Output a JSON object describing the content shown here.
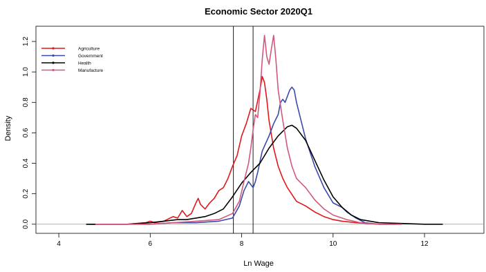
{
  "chart_data": {
    "type": "line",
    "title": "Economic Sector 2020Q1",
    "xlabel": "Ln Wage",
    "ylabel": "Density",
    "xlim": [
      3.5,
      13.3
    ],
    "ylim": [
      -0.06,
      1.3
    ],
    "xticks": [
      4,
      6,
      8,
      10,
      12
    ],
    "yticks": [
      0.0,
      0.2,
      0.4,
      0.6,
      0.8,
      1.0,
      1.2
    ],
    "xtick_labels": [
      "4",
      "6",
      "8",
      "10",
      "12"
    ],
    "ytick_labels": [
      "0.0",
      "0.2",
      "0.4",
      "0.6",
      "0.8",
      "1.0",
      "1.2"
    ],
    "grid": false,
    "legend_position": "top-left",
    "reference_lines": [
      7.82,
      8.25
    ],
    "series": [
      {
        "name": "Agriculture",
        "color": "#e3151a",
        "x": [
          4.7,
          5.5,
          5.9,
          6.0,
          6.1,
          6.3,
          6.5,
          6.6,
          6.7,
          6.8,
          6.9,
          7.0,
          7.05,
          7.1,
          7.2,
          7.3,
          7.4,
          7.5,
          7.6,
          7.7,
          7.8,
          7.9,
          8.0,
          8.1,
          8.2,
          8.3,
          8.4,
          8.45,
          8.5,
          8.55,
          8.6,
          8.7,
          8.8,
          8.9,
          9.0,
          9.2,
          9.4,
          9.6,
          9.8,
          10.0,
          10.2,
          10.5,
          11.0,
          11.4
        ],
        "y": [
          0.0,
          0.0,
          0.01,
          0.02,
          0.01,
          0.02,
          0.05,
          0.04,
          0.09,
          0.05,
          0.07,
          0.14,
          0.17,
          0.13,
          0.1,
          0.14,
          0.17,
          0.22,
          0.24,
          0.3,
          0.38,
          0.45,
          0.58,
          0.66,
          0.76,
          0.74,
          0.88,
          0.97,
          0.93,
          0.82,
          0.68,
          0.5,
          0.38,
          0.3,
          0.24,
          0.15,
          0.12,
          0.08,
          0.05,
          0.03,
          0.02,
          0.01,
          0.0,
          0.0
        ]
      },
      {
        "name": "Government",
        "color": "#3a49a8",
        "x": [
          4.6,
          6.0,
          6.5,
          7.0,
          7.5,
          7.8,
          7.95,
          8.05,
          8.15,
          8.25,
          8.3,
          8.35,
          8.45,
          8.6,
          8.7,
          8.8,
          8.85,
          8.9,
          8.95,
          9.0,
          9.05,
          9.1,
          9.15,
          9.2,
          9.3,
          9.4,
          9.6,
          9.8,
          10.0,
          10.2,
          10.3,
          10.5,
          10.7,
          11.0,
          11.5
        ],
        "y": [
          0.0,
          0.0,
          0.01,
          0.01,
          0.02,
          0.04,
          0.12,
          0.22,
          0.28,
          0.24,
          0.28,
          0.34,
          0.48,
          0.58,
          0.66,
          0.72,
          0.8,
          0.82,
          0.8,
          0.84,
          0.88,
          0.9,
          0.88,
          0.8,
          0.68,
          0.56,
          0.38,
          0.24,
          0.14,
          0.11,
          0.08,
          0.04,
          0.01,
          0.0,
          0.0
        ]
      },
      {
        "name": "Health",
        "color": "#000000",
        "x": [
          4.6,
          5.5,
          6.0,
          6.3,
          6.6,
          6.8,
          7.0,
          7.2,
          7.4,
          7.6,
          7.8,
          8.0,
          8.2,
          8.4,
          8.6,
          8.8,
          9.0,
          9.1,
          9.2,
          9.4,
          9.6,
          9.8,
          10.0,
          10.2,
          10.4,
          10.6,
          11.0,
          12.0,
          12.4
        ],
        "y": [
          0.0,
          0.0,
          0.01,
          0.02,
          0.03,
          0.03,
          0.04,
          0.05,
          0.07,
          0.1,
          0.18,
          0.27,
          0.34,
          0.4,
          0.5,
          0.58,
          0.64,
          0.65,
          0.63,
          0.55,
          0.42,
          0.29,
          0.18,
          0.11,
          0.06,
          0.03,
          0.01,
          0.0,
          0.0
        ]
      },
      {
        "name": "Manufacture",
        "color": "#d1587a",
        "x": [
          4.8,
          6.0,
          6.5,
          7.0,
          7.5,
          7.8,
          7.95,
          8.05,
          8.15,
          8.2,
          8.25,
          8.3,
          8.35,
          8.4,
          8.45,
          8.5,
          8.55,
          8.6,
          8.65,
          8.7,
          8.75,
          8.8,
          8.9,
          9.0,
          9.1,
          9.2,
          9.4,
          9.6,
          9.8,
          10.0,
          10.3,
          10.6,
          11.0,
          11.5
        ],
        "y": [
          0.0,
          0.0,
          0.01,
          0.02,
          0.03,
          0.07,
          0.15,
          0.28,
          0.4,
          0.5,
          0.62,
          0.72,
          0.7,
          0.86,
          1.08,
          1.24,
          1.1,
          1.05,
          1.15,
          1.24,
          1.08,
          0.88,
          0.68,
          0.5,
          0.38,
          0.3,
          0.24,
          0.16,
          0.1,
          0.06,
          0.03,
          0.01,
          0.0,
          0.0
        ]
      }
    ]
  }
}
